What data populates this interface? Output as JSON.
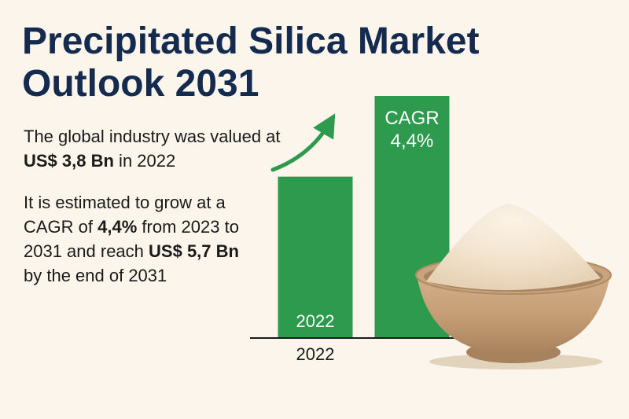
{
  "title": {
    "line1": "Precipitated Silica Market",
    "line2": "Outlook 2031"
  },
  "paragraph1": {
    "text_a": "The global industry was valued at ",
    "bold_a": "US$ 3,8 Bn",
    "text_b": " in 2022"
  },
  "paragraph2": {
    "text_a": "It is estimated to grow at a CAGR of ",
    "bold_a": "4,4%",
    "text_b": " from 2023 to 2031 and reach ",
    "bold_b": "US$ 5,7 Bn",
    "text_c": " by the end of 2031"
  },
  "colors": {
    "bar": "#2e9a4d",
    "title": "#142a4e",
    "background": "#fbf5ec",
    "bowl": "#c7a27a",
    "powder": "#f3e6d3"
  },
  "chart_data": {
    "type": "bar",
    "categories": [
      "2022",
      ""
    ],
    "values": [
      3.8,
      5.7
    ],
    "bar_labels": [
      "2022",
      "CAGR\n4,4%"
    ],
    "xtick_labels": [
      "2022",
      ""
    ],
    "title": "",
    "xlabel": "",
    "ylabel": "",
    "ylim": [
      0,
      5.7
    ],
    "grid": false,
    "trend_arrow": "upward, green"
  }
}
